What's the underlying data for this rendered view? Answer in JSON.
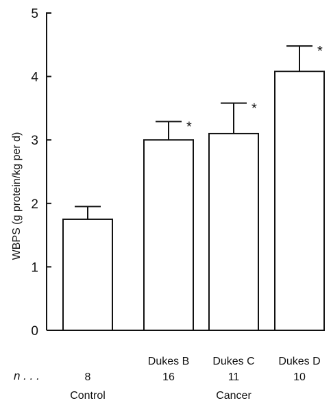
{
  "chart_data": {
    "type": "bar",
    "categories": [
      "",
      "Dukes B",
      "Dukes C",
      "Dukes D"
    ],
    "n_label": "n . . .",
    "n_values": [
      "8",
      "16",
      "11",
      "10"
    ],
    "group_labels": [
      "Control",
      "Cancer"
    ],
    "values": [
      1.75,
      3.0,
      3.1,
      4.08
    ],
    "error_upper": [
      1.95,
      3.29,
      3.58,
      4.48
    ],
    "significance": [
      "",
      "*",
      "*",
      "*"
    ],
    "ylabel": "WBPS (g protein/kg per d)",
    "xlabel": "",
    "ylim": [
      0,
      5
    ],
    "yticks": [
      0,
      1,
      2,
      3,
      4,
      5
    ],
    "bar_fill": "#ffffff",
    "stroke_color": "#111111"
  }
}
